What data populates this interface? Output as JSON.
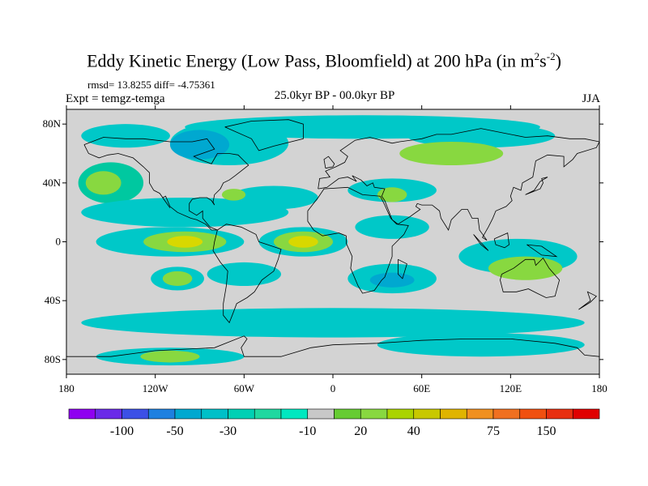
{
  "title_main": "Eddy Kinetic Energy (Low Pass, Bloomfield) at 200 hPa (in m",
  "title_sup1": "2",
  "title_mid": "s",
  "title_sup2": "-2",
  "title_end": ")",
  "stats": "rmsd= 13.8255 diff= -4.75361",
  "experiment": "Expt = temgz-temga",
  "period": "25.0kyr BP - 00.0kyr BP",
  "season": "JJA",
  "map": {
    "projection": "cylindrical-equidistant",
    "lon_range": [
      -180,
      180
    ],
    "lat_range": [
      -90,
      90
    ],
    "ocean_background": "#d3d3d3",
    "y_ticks": [
      {
        "lat": 80,
        "label": "80N"
      },
      {
        "lat": 40,
        "label": "40N"
      },
      {
        "lat": 0,
        "label": "0"
      },
      {
        "lat": -40,
        "label": "40S"
      },
      {
        "lat": -80,
        "label": "80S"
      }
    ],
    "x_ticks": [
      {
        "lon": -180,
        "label": "180"
      },
      {
        "lon": -120,
        "label": "120W"
      },
      {
        "lon": -60,
        "label": "60W"
      },
      {
        "lon": 0,
        "label": "0"
      },
      {
        "lon": 60,
        "label": "60E"
      },
      {
        "lon": 120,
        "label": "120E"
      },
      {
        "lon": 180,
        "label": "180"
      }
    ],
    "fields": [
      {
        "lon": 20,
        "lat": 78,
        "rx": 120,
        "ry": 8,
        "color": "#00c8c8"
      },
      {
        "lon": 100,
        "lat": 72,
        "rx": 50,
        "ry": 8,
        "color": "#00c8c8"
      },
      {
        "lon": -70,
        "lat": 67,
        "rx": 40,
        "ry": 15,
        "color": "#00c8c8"
      },
      {
        "lon": -90,
        "lat": 66,
        "rx": 20,
        "ry": 10,
        "color": "#00a8d0"
      },
      {
        "lon": -140,
        "lat": 72,
        "rx": 30,
        "ry": 8,
        "color": "#00c8c8"
      },
      {
        "lon": -150,
        "lat": 40,
        "rx": 22,
        "ry": 14,
        "color": "#00c8a0"
      },
      {
        "lon": -155,
        "lat": 40,
        "rx": 12,
        "ry": 8,
        "color": "#88d840"
      },
      {
        "lon": -100,
        "lat": 20,
        "rx": 70,
        "ry": 10,
        "color": "#00c8c8"
      },
      {
        "lon": -40,
        "lat": 30,
        "rx": 30,
        "ry": 8,
        "color": "#00c8c8"
      },
      {
        "lon": 40,
        "lat": 35,
        "rx": 30,
        "ry": 8,
        "color": "#00c8c8"
      },
      {
        "lon": 40,
        "lat": 32,
        "rx": 10,
        "ry": 5,
        "color": "#88d840"
      },
      {
        "lon": -67,
        "lat": 32,
        "rx": 8,
        "ry": 4,
        "color": "#88d840"
      },
      {
        "lon": -110,
        "lat": 0,
        "rx": 50,
        "ry": 10,
        "color": "#00c8c8"
      },
      {
        "lon": -100,
        "lat": 0,
        "rx": 28,
        "ry": 7,
        "color": "#88d840"
      },
      {
        "lon": -100,
        "lat": 0,
        "rx": 12,
        "ry": 4,
        "color": "#d8d800"
      },
      {
        "lon": -20,
        "lat": 0,
        "rx": 30,
        "ry": 10,
        "color": "#00c8c8"
      },
      {
        "lon": -20,
        "lat": 0,
        "rx": 20,
        "ry": 7,
        "color": "#88d840"
      },
      {
        "lon": -20,
        "lat": 0,
        "rx": 10,
        "ry": 4,
        "color": "#d8d800"
      },
      {
        "lon": 40,
        "lat": 10,
        "rx": 25,
        "ry": 8,
        "color": "#00c8c8"
      },
      {
        "lon": 125,
        "lat": -10,
        "rx": 40,
        "ry": 12,
        "color": "#00c8c8"
      },
      {
        "lon": 130,
        "lat": -18,
        "rx": 25,
        "ry": 8,
        "color": "#88d840"
      },
      {
        "lon": -105,
        "lat": -25,
        "rx": 18,
        "ry": 8,
        "color": "#00c8c8"
      },
      {
        "lon": -105,
        "lat": -25,
        "rx": 10,
        "ry": 5,
        "color": "#88d840"
      },
      {
        "lon": -60,
        "lat": -22,
        "rx": 25,
        "ry": 8,
        "color": "#00c8c8"
      },
      {
        "lon": 40,
        "lat": -25,
        "rx": 30,
        "ry": 10,
        "color": "#00c8c8"
      },
      {
        "lon": 40,
        "lat": -26,
        "rx": 15,
        "ry": 5,
        "color": "#00a8d0"
      },
      {
        "lon": 0,
        "lat": -55,
        "rx": 170,
        "ry": 10,
        "color": "#00c8c8"
      },
      {
        "lon": 100,
        "lat": -70,
        "rx": 70,
        "ry": 8,
        "color": "#00c8c8"
      },
      {
        "lon": -110,
        "lat": -78,
        "rx": 50,
        "ry": 6,
        "color": "#00c8c8"
      },
      {
        "lon": -110,
        "lat": -78,
        "rx": 20,
        "ry": 4,
        "color": "#88d840"
      },
      {
        "lon": 80,
        "lat": 60,
        "rx": 35,
        "ry": 8,
        "color": "#88d840"
      }
    ],
    "coastlines": [
      [
        [
          -168,
          66
        ],
        [
          -155,
          71
        ],
        [
          -140,
          70
        ],
        [
          -128,
          70
        ],
        [
          -110,
          68
        ],
        [
          -95,
          68
        ],
        [
          -85,
          70
        ],
        [
          -80,
          63
        ],
        [
          -94,
          58
        ],
        [
          -90,
          56
        ],
        [
          -82,
          53
        ],
        [
          -78,
          60
        ],
        [
          -70,
          60
        ],
        [
          -64,
          59
        ],
        [
          -60,
          55
        ],
        [
          -57,
          52
        ],
        [
          -66,
          45
        ],
        [
          -70,
          42
        ],
        [
          -74,
          40
        ],
        [
          -76,
          36
        ],
        [
          -80,
          32
        ],
        [
          -81,
          27
        ],
        [
          -80,
          25
        ],
        [
          -82,
          28
        ],
        [
          -85,
          30
        ],
        [
          -90,
          30
        ],
        [
          -95,
          29
        ],
        [
          -97,
          26
        ],
        [
          -97,
          21
        ],
        [
          -92,
          18
        ],
        [
          -88,
          21
        ],
        [
          -88,
          16
        ],
        [
          -83,
          10
        ],
        [
          -78,
          8
        ],
        [
          -82,
          8
        ],
        [
          -86,
          12
        ],
        [
          -92,
          15
        ],
        [
          -96,
          16
        ],
        [
          -105,
          20
        ],
        [
          -110,
          24
        ],
        [
          -113,
          31
        ],
        [
          -115,
          30
        ],
        [
          -110,
          23
        ],
        [
          -117,
          33
        ],
        [
          -121,
          35
        ],
        [
          -124,
          40
        ],
        [
          -124,
          47
        ],
        [
          -128,
          51
        ],
        [
          -135,
          57
        ],
        [
          -145,
          60
        ],
        [
          -152,
          59
        ],
        [
          -158,
          57
        ],
        [
          -165,
          60
        ],
        [
          -168,
          66
        ]
      ],
      [
        [
          -78,
          8
        ],
        [
          -72,
          12
        ],
        [
          -62,
          10
        ],
        [
          -52,
          5
        ],
        [
          -50,
          0
        ],
        [
          -44,
          -2
        ],
        [
          -35,
          -5
        ],
        [
          -37,
          -12
        ],
        [
          -40,
          -20
        ],
        [
          -48,
          -26
        ],
        [
          -53,
          -34
        ],
        [
          -58,
          -38
        ],
        [
          -65,
          -42
        ],
        [
          -68,
          -50
        ],
        [
          -70,
          -55
        ],
        [
          -74,
          -50
        ],
        [
          -74,
          -42
        ],
        [
          -72,
          -30
        ],
        [
          -71,
          -20
        ],
        [
          -76,
          -14
        ],
        [
          -81,
          -6
        ],
        [
          -80,
          0
        ],
        [
          -78,
          8
        ]
      ],
      [
        [
          -73,
          78
        ],
        [
          -55,
          82
        ],
        [
          -30,
          83
        ],
        [
          -20,
          80
        ],
        [
          -20,
          70
        ],
        [
          -40,
          65
        ],
        [
          -50,
          62
        ],
        [
          -55,
          70
        ],
        [
          -73,
          78
        ]
      ],
      [
        [
          -10,
          36
        ],
        [
          -9,
          43
        ],
        [
          -2,
          44
        ],
        [
          -5,
          48
        ],
        [
          2,
          51
        ],
        [
          8,
          54
        ],
        [
          10,
          58
        ],
        [
          5,
          62
        ],
        [
          15,
          69
        ],
        [
          25,
          71
        ],
        [
          40,
          67
        ],
        [
          45,
          68
        ],
        [
          60,
          70
        ],
        [
          70,
          73
        ],
        [
          80,
          73
        ],
        [
          100,
          77
        ],
        [
          115,
          74
        ],
        [
          130,
          71
        ],
        [
          145,
          72
        ],
        [
          160,
          70
        ],
        [
          170,
          70
        ],
        [
          180,
          68
        ],
        [
          178,
          64
        ],
        [
          165,
          60
        ],
        [
          162,
          56
        ],
        [
          156,
          51
        ],
        [
          156,
          58
        ],
        [
          145,
          59
        ],
        [
          137,
          55
        ],
        [
          135,
          44
        ],
        [
          128,
          40
        ],
        [
          127,
          35
        ],
        [
          122,
          37
        ],
        [
          120,
          31
        ],
        [
          121,
          28
        ],
        [
          117,
          24
        ],
        [
          110,
          21
        ],
        [
          108,
          16
        ],
        [
          105,
          10
        ],
        [
          101,
          3
        ],
        [
          104,
          1
        ],
        [
          99,
          8
        ],
        [
          98,
          16
        ],
        [
          94,
          16
        ],
        [
          91,
          22
        ],
        [
          87,
          22
        ],
        [
          80,
          15
        ],
        [
          78,
          8
        ],
        [
          73,
          16
        ],
        [
          72,
          21
        ],
        [
          67,
          25
        ],
        [
          60,
          25
        ],
        [
          57,
          26
        ],
        [
          56,
          24
        ],
        [
          59,
          22
        ],
        [
          52,
          17
        ],
        [
          44,
          12
        ],
        [
          40,
          15
        ],
        [
          35,
          28
        ],
        [
          33,
          31
        ],
        [
          35,
          36
        ],
        [
          28,
          37
        ],
        [
          27,
          40
        ],
        [
          23,
          38
        ],
        [
          21,
          40
        ],
        [
          19,
          42
        ],
        [
          13,
          45
        ],
        [
          16,
          41
        ],
        [
          10,
          44
        ],
        [
          4,
          43
        ],
        [
          -4,
          37
        ],
        [
          -10,
          36
        ]
      ],
      [
        [
          -17,
          21
        ],
        [
          -10,
          30
        ],
        [
          -6,
          36
        ],
        [
          10,
          37
        ],
        [
          20,
          32
        ],
        [
          32,
          31
        ],
        [
          35,
          25
        ],
        [
          39,
          16
        ],
        [
          43,
          12
        ],
        [
          51,
          11
        ],
        [
          48,
          5
        ],
        [
          40,
          -3
        ],
        [
          40,
          -10
        ],
        [
          35,
          -24
        ],
        [
          33,
          -26
        ],
        [
          28,
          -33
        ],
        [
          20,
          -35
        ],
        [
          17,
          -30
        ],
        [
          12,
          -18
        ],
        [
          13,
          -10
        ],
        [
          9,
          -1
        ],
        [
          9,
          4
        ],
        [
          4,
          6
        ],
        [
          -7,
          4
        ],
        [
          -13,
          8
        ],
        [
          -17,
          14
        ],
        [
          -17,
          21
        ]
      ],
      [
        [
          114,
          -22
        ],
        [
          122,
          -18
        ],
        [
          130,
          -12
        ],
        [
          136,
          -12
        ],
        [
          137,
          -16
        ],
        [
          142,
          -11
        ],
        [
          146,
          -18
        ],
        [
          153,
          -26
        ],
        [
          150,
          -37
        ],
        [
          144,
          -38
        ],
        [
          138,
          -35
        ],
        [
          132,
          -32
        ],
        [
          124,
          -34
        ],
        [
          115,
          -34
        ],
        [
          113,
          -26
        ],
        [
          114,
          -22
        ]
      ],
      [
        [
          -5,
          50
        ],
        [
          0,
          51
        ],
        [
          1,
          53
        ],
        [
          -3,
          58
        ],
        [
          -6,
          56
        ],
        [
          -5,
          50
        ]
      ],
      [
        [
          130,
          32
        ],
        [
          135,
          34
        ],
        [
          140,
          36
        ],
        [
          142,
          40
        ],
        [
          141,
          43
        ],
        [
          145,
          44
        ],
        [
          140,
          41
        ],
        [
          136,
          35
        ],
        [
          130,
          32
        ]
      ],
      [
        [
          95,
          5
        ],
        [
          105,
          -6
        ],
        [
          100,
          -2
        ],
        [
          95,
          5
        ]
      ],
      [
        [
          109,
          2
        ],
        [
          118,
          6
        ],
        [
          119,
          -2
        ],
        [
          116,
          -4
        ],
        [
          110,
          -2
        ],
        [
          109,
          2
        ]
      ],
      [
        [
          131,
          -2
        ],
        [
          141,
          -3
        ],
        [
          151,
          -10
        ],
        [
          141,
          -9
        ],
        [
          131,
          -2
        ]
      ],
      [
        [
          44,
          -12
        ],
        [
          50,
          -15
        ],
        [
          47,
          -25
        ],
        [
          44,
          -22
        ],
        [
          44,
          -12
        ]
      ],
      [
        [
          166,
          -46
        ],
        [
          174,
          -41
        ],
        [
          178,
          -37
        ],
        [
          172,
          -34
        ],
        [
          174,
          -40
        ],
        [
          166,
          -46
        ]
      ],
      [
        [
          -180,
          -78
        ],
        [
          -150,
          -78
        ],
        [
          -120,
          -74
        ],
        [
          -100,
          -73
        ],
        [
          -80,
          -72
        ],
        [
          -60,
          -64
        ],
        [
          -58,
          -66
        ],
        [
          -62,
          -72
        ],
        [
          -60,
          -78
        ],
        [
          -35,
          -78
        ],
        [
          -15,
          -72
        ],
        [
          0,
          -70
        ],
        [
          30,
          -69
        ],
        [
          60,
          -67
        ],
        [
          90,
          -66
        ],
        [
          120,
          -66
        ],
        [
          150,
          -69
        ],
        [
          165,
          -72
        ],
        [
          170,
          -77
        ],
        [
          180,
          -78
        ]
      ]
    ]
  },
  "colorbar": {
    "colors": [
      "#8f00f0",
      "#6a2ae8",
      "#3c50e6",
      "#1e80e0",
      "#00a8d0",
      "#00c0c8",
      "#00d0b4",
      "#20d8a0",
      "#00e8c0",
      "#c8c8c8",
      "#66cc33",
      "#88d840",
      "#aad400",
      "#c8c800",
      "#e0b400",
      "#f09020",
      "#f07020",
      "#f05010",
      "#e83010",
      "#e00000"
    ],
    "labels": [
      {
        "boundary": 2,
        "text": "-100"
      },
      {
        "boundary": 4,
        "text": "-50"
      },
      {
        "boundary": 6,
        "text": "-30"
      },
      {
        "boundary": 9,
        "text": "-10"
      },
      {
        "boundary": 11,
        "text": "20"
      },
      {
        "boundary": 13,
        "text": "40"
      },
      {
        "boundary": 16,
        "text": "75"
      },
      {
        "boundary": 18,
        "text": "150"
      }
    ]
  }
}
